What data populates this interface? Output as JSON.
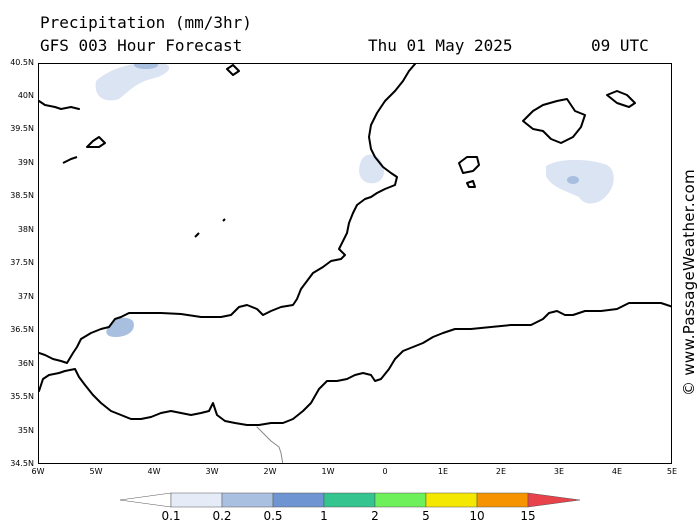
{
  "header": {
    "title": "Precipitation (mm/3hr)",
    "subtitle": "GFS 003 Hour Forecast",
    "date": "Thu 01 May 2025",
    "time": "09 UTC"
  },
  "credit": "© www.PassageWeather.com",
  "map": {
    "lat_labels": [
      "40.5N",
      "40N",
      "39.5N",
      "39N",
      "38.5N",
      "38N",
      "37.5N",
      "37N",
      "36.5N",
      "36N",
      "35.5N",
      "35N",
      "34.5N"
    ],
    "lon_labels": [
      "6W",
      "5W",
      "4W",
      "3W",
      "2W",
      "1W",
      "0",
      "1E",
      "2E",
      "3E",
      "4E",
      "5E"
    ],
    "precip_colors": {
      "light": "#dbe4f3",
      "medium": "#a9bfe0",
      "heavy": "#7195cf"
    }
  },
  "legend": {
    "labels": [
      "0.1",
      "0.2",
      "0.5",
      "1",
      "2",
      "5",
      "10",
      "15"
    ],
    "colors": [
      "#ffffff",
      "#e6ecf7",
      "#a9c0e0",
      "#6f94d2",
      "#33c48f",
      "#6ef05a",
      "#f5e800",
      "#f59400",
      "#e8424b"
    ]
  }
}
